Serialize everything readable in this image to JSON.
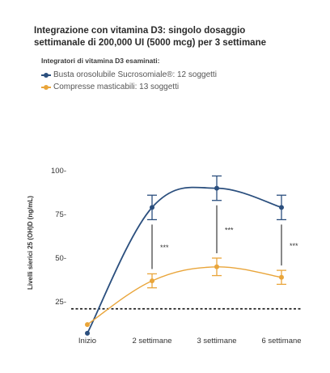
{
  "title_lines": [
    "Integrazione con vitamina D3: singolo dosaggio",
    "settimanale di 200,000 UI (5000 mcg) per 3 settimane"
  ],
  "legend": {
    "heading": "Integratori di vitamina D3 esaminati:",
    "items": [
      {
        "label": "Busta orosolubile Sucrosomiale®: 12 soggetti",
        "color": "#2b4f7e"
      },
      {
        "label": "Compresse masticabili: 13 soggetti",
        "color": "#e9a53a"
      }
    ]
  },
  "chart_data": {
    "type": "line",
    "categories": [
      "Inizio",
      "2 settimane",
      "3 settimane",
      "6 settimane"
    ],
    "ylabel": "Livelli sierici 25 (OH)D (ng/mL)",
    "ylim": [
      0,
      100
    ],
    "yticks": [
      25,
      50,
      75,
      100
    ],
    "ytick_labels": [
      "25-",
      "50-",
      "75-",
      "100-"
    ],
    "reference_line": 21,
    "series": [
      {
        "color": "#2b4f7e",
        "values": [
          7,
          79,
          90,
          79
        ],
        "error": [
          null,
          7,
          7,
          7
        ]
      },
      {
        "color": "#e9a53a",
        "values": [
          12,
          37,
          45,
          39
        ],
        "error": [
          null,
          4,
          5,
          4
        ]
      }
    ],
    "significance": [
      "",
      "***",
      "***",
      "***"
    ]
  }
}
